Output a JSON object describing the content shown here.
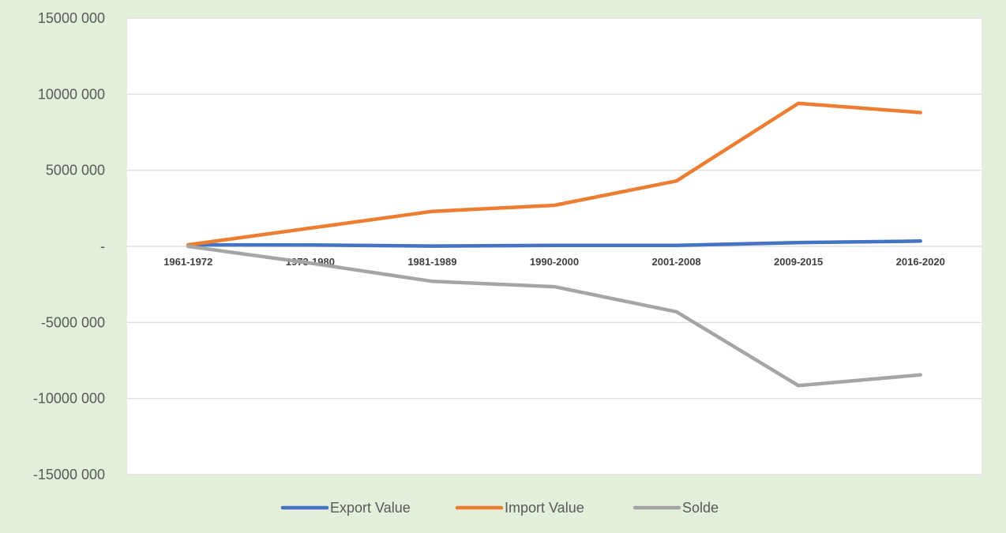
{
  "chart_data": {
    "type": "line",
    "title": "",
    "xlabel": "",
    "ylabel": "",
    "categories": [
      "1961-1972",
      "1973-1980",
      "1981-1989",
      "1990-2000",
      "2001-2008",
      "2009-2015",
      "2016-2020"
    ],
    "series": [
      {
        "name": "Export Value",
        "color": "#4472c4",
        "values": [
          100000,
          90000,
          20000,
          60000,
          60000,
          250000,
          350000
        ]
      },
      {
        "name": "Import Value",
        "color": "#ed7d31",
        "values": [
          100000,
          1200000,
          2300000,
          2700000,
          4300000,
          9400000,
          8800000
        ]
      },
      {
        "name": "Solde",
        "color": "#a5a5a5",
        "values": [
          0,
          -1100000,
          -2300000,
          -2650000,
          -4300000,
          -9150000,
          -8450000
        ]
      }
    ],
    "ylim": [
      -15000000,
      15000000
    ],
    "ytick_values": [
      15000000,
      10000000,
      5000000,
      0,
      -5000000,
      -10000000,
      -15000000
    ],
    "ytick_labels": [
      "15000 000",
      "10000 000",
      "5000 000",
      "-",
      "-5000 000",
      "-10000 000",
      "-15000 000"
    ],
    "grid": true,
    "legend_position": "bottom"
  },
  "colors": {
    "background": "#e2efda",
    "plot_area": "#ffffff",
    "gridline": "#d9d9d9"
  }
}
